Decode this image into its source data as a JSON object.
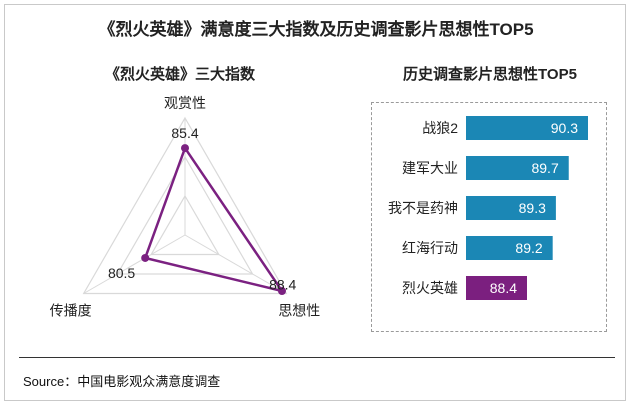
{
  "title": "《烈火英雄》满意度三大指数及历史调查影片思想性TOP5",
  "source": "Source：中国电影观众满意度调查",
  "chart_data": [
    {
      "type": "radar",
      "title": "《烈火英雄》三大指数",
      "axes": [
        "观赏性",
        "思想性",
        "传播度"
      ],
      "values": [
        85.4,
        88.4,
        80.5
      ],
      "value_labels": [
        "85.4",
        "88.4",
        "80.5"
      ],
      "colors": {
        "series": "#7b2181",
        "grid": "#d9d9d9"
      }
    },
    {
      "type": "bar",
      "orientation": "horizontal",
      "title": "历史调查影片思想性TOP5",
      "categories": [
        "战狼2",
        "建军大业",
        "我不是药神",
        "红海行动",
        "烈火英雄"
      ],
      "values": [
        90.3,
        89.7,
        89.3,
        89.2,
        88.4
      ],
      "value_labels": [
        "90.3",
        "89.7",
        "89.3",
        "89.2",
        "88.4"
      ],
      "colors": {
        "default": "#1b87b5",
        "highlight": "#7b1f7f"
      },
      "highlight_category": "烈火英雄"
    }
  ]
}
